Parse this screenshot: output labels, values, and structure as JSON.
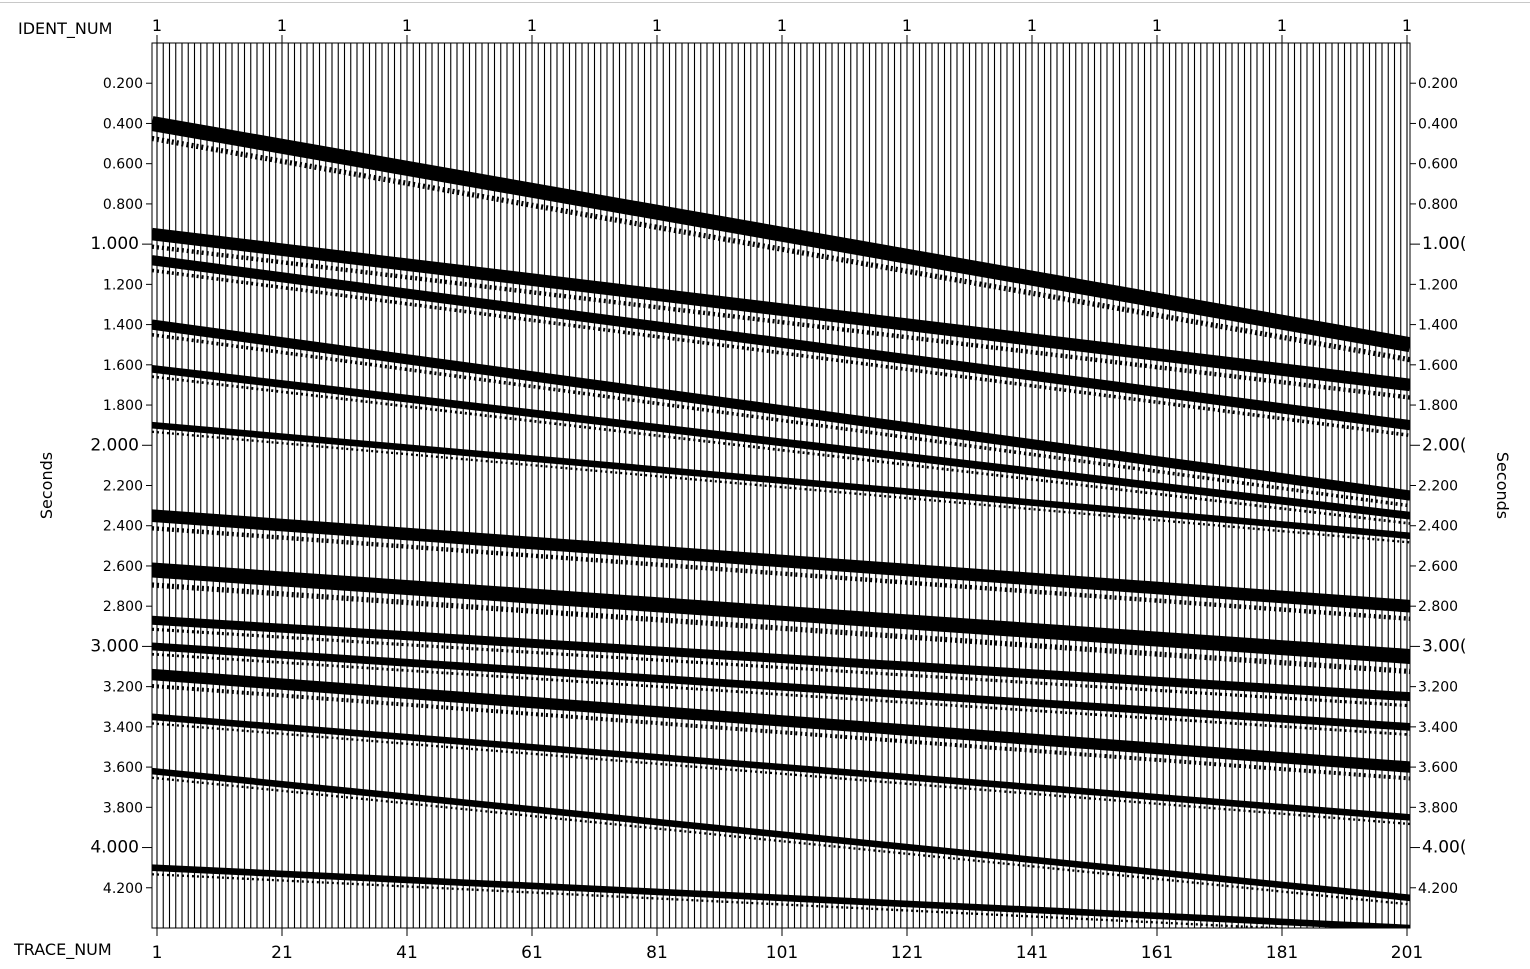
{
  "chart_data": {
    "type": "seismic_wiggle",
    "top_axis": {
      "label": "IDENT_NUM",
      "tick_labels": [
        "1",
        "1",
        "1",
        "1",
        "1",
        "1",
        "1",
        "1",
        "1",
        "1",
        "1"
      ]
    },
    "bottom_axis": {
      "label": "TRACE_NUM",
      "tick_labels": [
        "1",
        "21",
        "41",
        "61",
        "81",
        "101",
        "121",
        "141",
        "161",
        "181",
        "201"
      ]
    },
    "y_axis": {
      "label": "Seconds",
      "left_tick_labels": [
        "0.200",
        "0.400",
        "0.600",
        "0.800",
        "1.000",
        "1.200",
        "1.400",
        "1.600",
        "1.800",
        "2.000",
        "2.200",
        "2.400",
        "2.600",
        "2.800",
        "3.000",
        "3.200",
        "3.400",
        "3.600",
        "3.800",
        "4.000",
        "4.200"
      ],
      "right_tick_labels": [
        "0.200",
        "0.400",
        "0.600",
        "0.800",
        "1.00(",
        "1.200",
        "1.400",
        "1.600",
        "1.800",
        "2.00(",
        "2.200",
        "2.400",
        "2.600",
        "2.800",
        "3.00(",
        "3.200",
        "3.400",
        "3.600",
        "3.800",
        "4.00(",
        "4.200"
      ],
      "major_ticks": [
        "1.000",
        "2.000",
        "3.000",
        "4.000"
      ],
      "range": [
        0.0,
        4.4
      ],
      "inverted": true
    },
    "x_range": [
      1,
      201
    ],
    "trace_count": 201,
    "events": [
      {
        "t_start": 0.4,
        "t_end": 1.5,
        "strength": 1.0
      },
      {
        "t_start": 0.95,
        "t_end": 1.7,
        "strength": 0.8
      },
      {
        "t_start": 1.08,
        "t_end": 1.9,
        "strength": 0.6
      },
      {
        "t_start": 1.4,
        "t_end": 2.25,
        "strength": 0.6
      },
      {
        "t_start": 1.62,
        "t_end": 2.35,
        "strength": 0.4
      },
      {
        "t_start": 1.9,
        "t_end": 2.45,
        "strength": 0.3
      },
      {
        "t_start": 2.35,
        "t_end": 2.8,
        "strength": 0.8
      },
      {
        "t_start": 2.62,
        "t_end": 3.05,
        "strength": 1.0
      },
      {
        "t_start": 2.87,
        "t_end": 3.25,
        "strength": 0.5
      },
      {
        "t_start": 3.0,
        "t_end": 3.4,
        "strength": 0.4
      },
      {
        "t_start": 3.14,
        "t_end": 3.6,
        "strength": 0.7
      },
      {
        "t_start": 3.35,
        "t_end": 3.85,
        "strength": 0.3
      },
      {
        "t_start": 3.62,
        "t_end": 4.25,
        "strength": 0.3
      },
      {
        "t_start": 4.1,
        "t_end": 4.4,
        "strength": 0.3
      }
    ]
  }
}
